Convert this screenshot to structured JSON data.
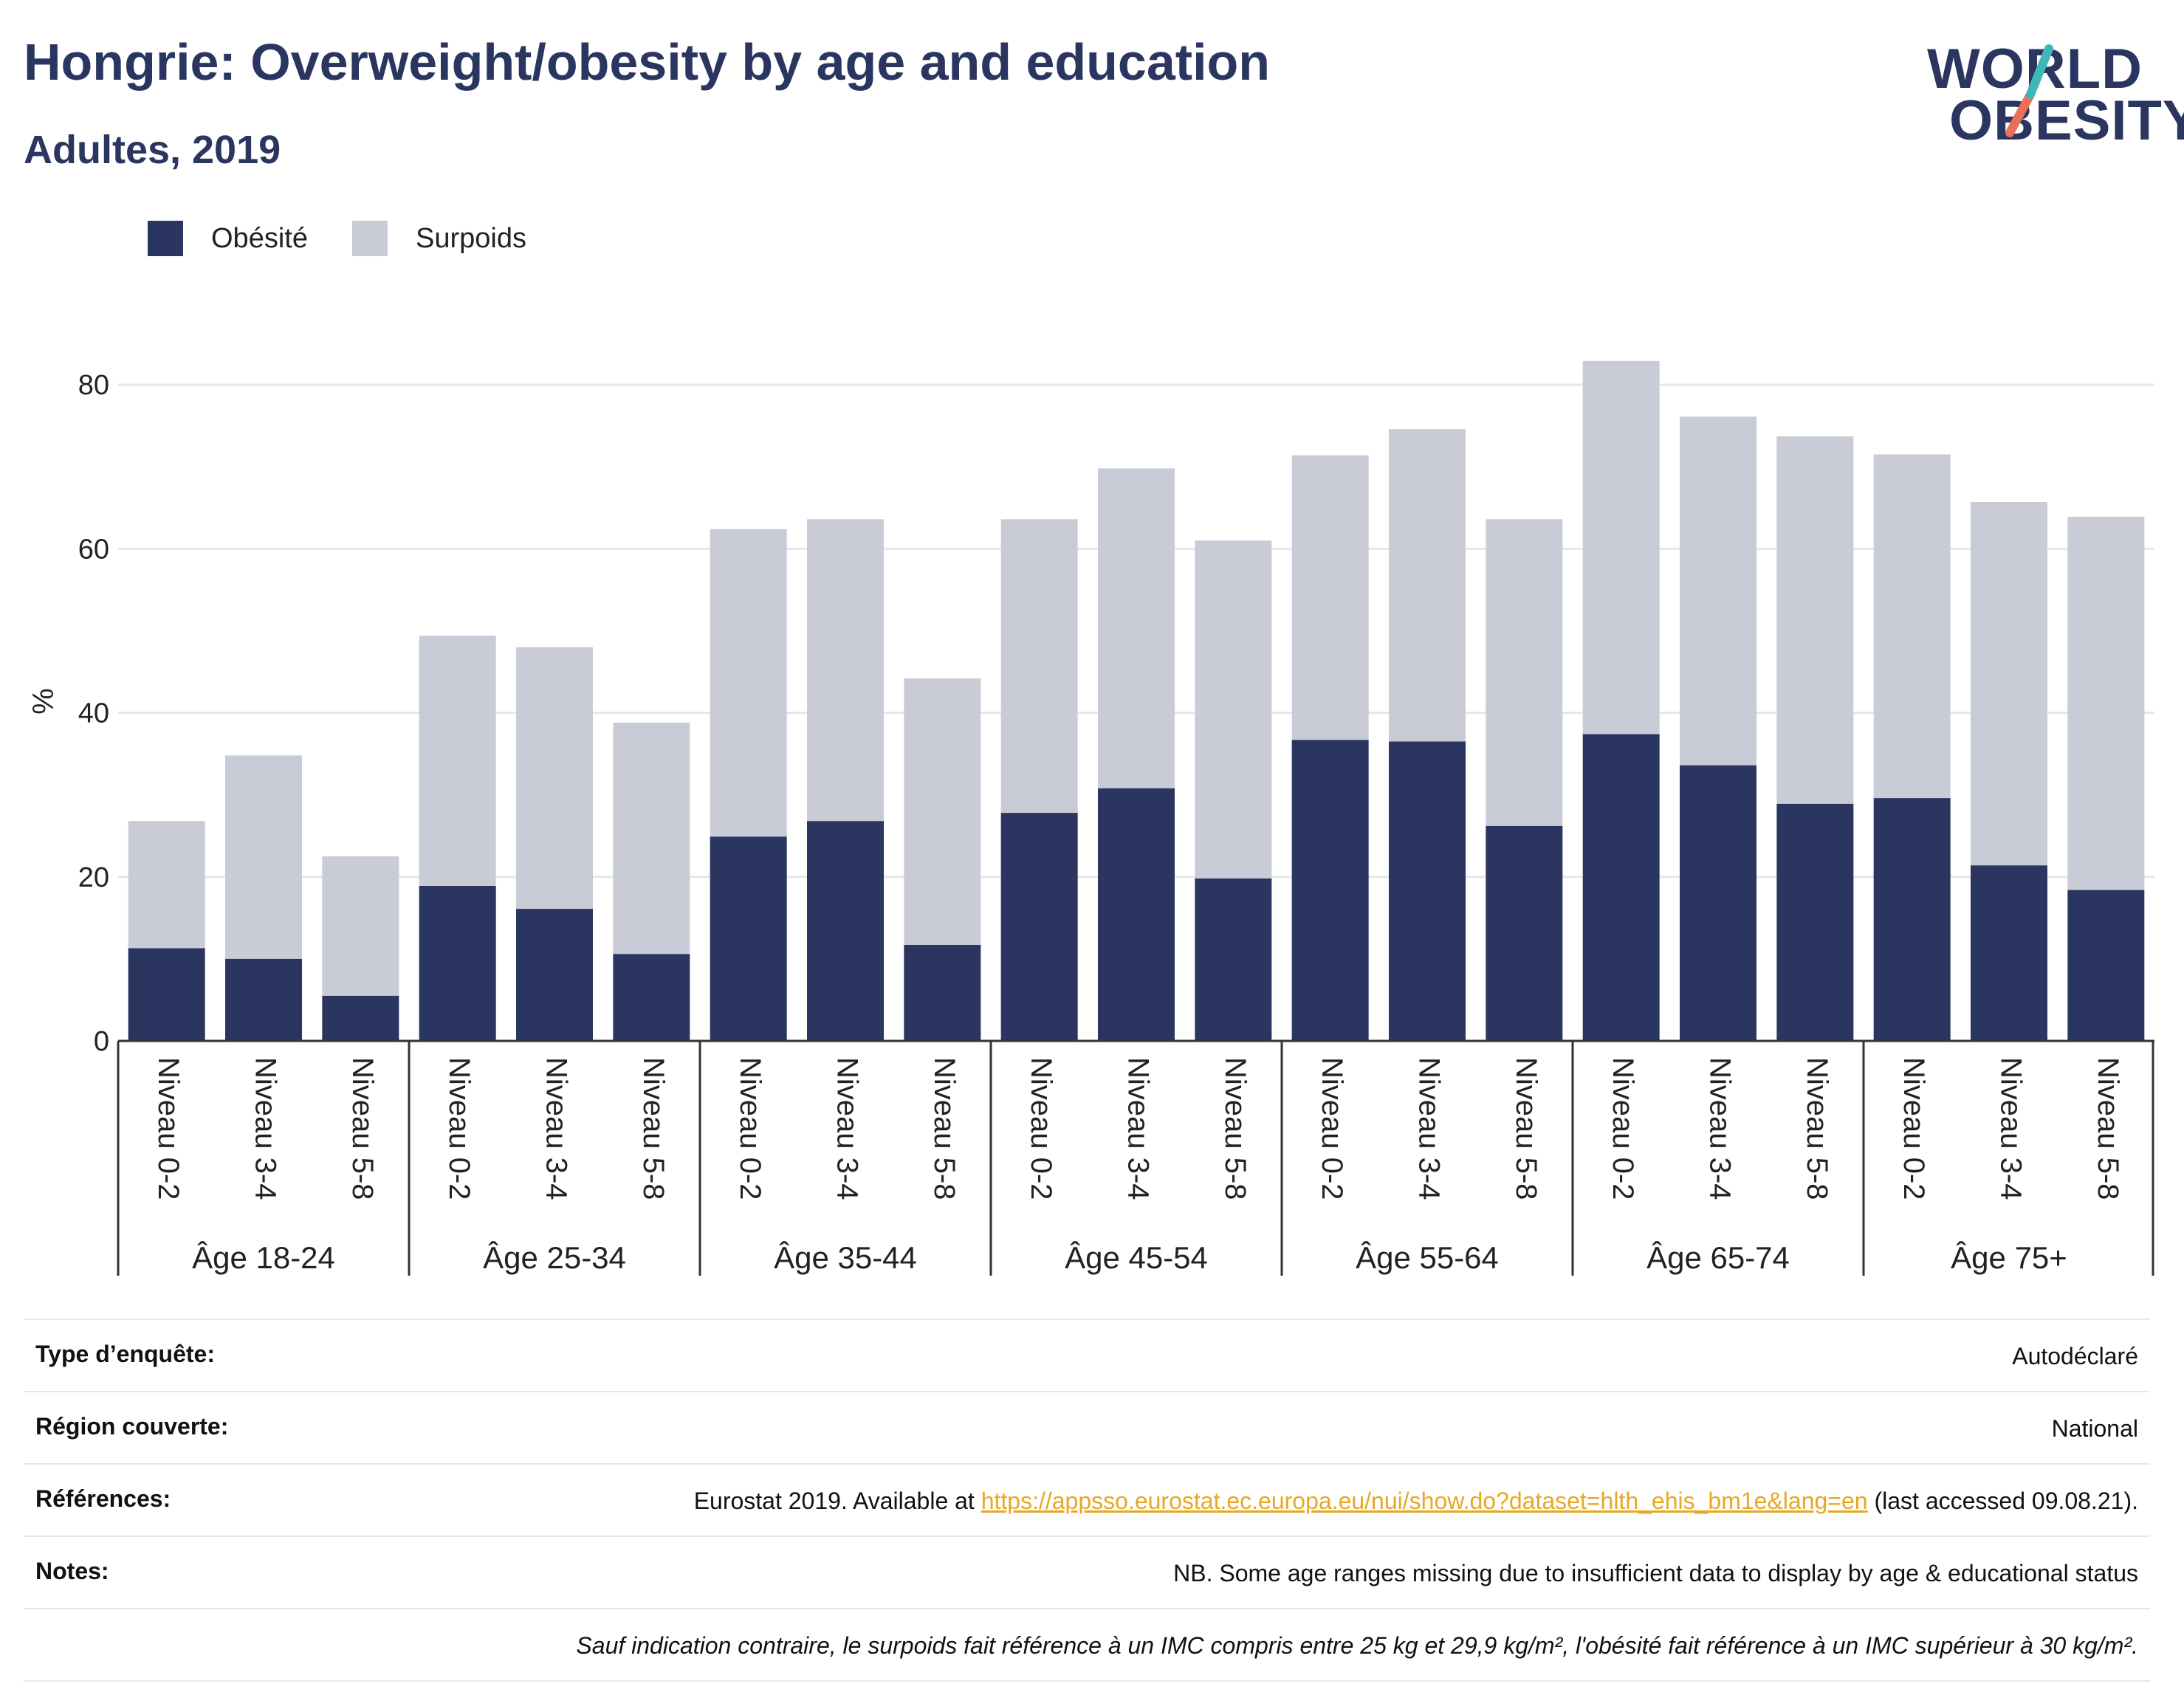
{
  "title": "Hongrie: Overweight/obesity by age and education",
  "subtitle": "Adultes, 2019",
  "logo": {
    "line1": "WORLD",
    "line2": "OBESITY",
    "colors": {
      "navy": "#2b3660",
      "teal": "#3fb7b7",
      "coral": "#e8705a"
    }
  },
  "colors": {
    "obesite": "#2b3660",
    "surpoids": "#c9cbd7",
    "grid": "#e6e7ec",
    "axis": "#333333"
  },
  "chart_data": {
    "type": "bar",
    "stacked": true,
    "ylabel": "%",
    "ylim": [
      0,
      90
    ],
    "yticks": [
      0,
      20,
      40,
      60,
      80
    ],
    "grid": true,
    "legend": [
      "Obésité",
      "Surpoids"
    ],
    "legend_position": "top-left",
    "groups": [
      {
        "label": "Âge 18-24",
        "categories": [
          "Niveau 0-2",
          "Niveau 3-4",
          "Niveau 5-8"
        ],
        "obesite": [
          11.3,
          10.0,
          5.5
        ],
        "total": [
          26.8,
          34.8,
          22.5
        ]
      },
      {
        "label": "Âge 25-34",
        "categories": [
          "Niveau 0-2",
          "Niveau 3-4",
          "Niveau 5-8"
        ],
        "obesite": [
          18.9,
          16.1,
          10.6
        ],
        "total": [
          49.4,
          48.0,
          38.8
        ]
      },
      {
        "label": "Âge 35-44",
        "categories": [
          "Niveau 0-2",
          "Niveau 3-4",
          "Niveau 5-8"
        ],
        "obesite": [
          24.9,
          26.8,
          11.7
        ],
        "total": [
          62.4,
          63.6,
          44.2
        ]
      },
      {
        "label": "Âge 45-54",
        "categories": [
          "Niveau 0-2",
          "Niveau 3-4",
          "Niveau 5-8"
        ],
        "obesite": [
          27.8,
          30.8,
          19.8
        ],
        "total": [
          63.6,
          69.8,
          61.0
        ]
      },
      {
        "label": "Âge 55-64",
        "categories": [
          "Niveau 0-2",
          "Niveau 3-4",
          "Niveau 5-8"
        ],
        "obesite": [
          36.7,
          36.5,
          26.2
        ],
        "total": [
          71.4,
          74.6,
          63.6
        ]
      },
      {
        "label": "Âge 65-74",
        "categories": [
          "Niveau 0-2",
          "Niveau 3-4",
          "Niveau 5-8"
        ],
        "obesite": [
          37.4,
          33.6,
          28.9
        ],
        "total": [
          82.9,
          76.1,
          73.7
        ]
      },
      {
        "label": "Âge 75+",
        "categories": [
          "Niveau 0-2",
          "Niveau 3-4",
          "Niveau 5-8"
        ],
        "obesite": [
          29.6,
          21.4,
          18.4
        ],
        "total": [
          71.5,
          65.7,
          63.9
        ]
      }
    ]
  },
  "info": {
    "survey_label": "Type d’enquête:",
    "survey_value": "Autodéclaré",
    "region_label": "Région couverte:",
    "region_value": "National",
    "refs_label": "Références:",
    "refs_text_before": "Eurostat 2019. Available at ",
    "refs_link": "https://appsso.eurostat.ec.europa.eu/nui/show.do?dataset=hlth_ehis_bm1e&lang=en",
    "refs_text_after": " (last accessed 09.08.21).",
    "notes_label": "Notes:",
    "notes_value": "NB. Some age ranges missing due to insufficient data to display by age & educational status",
    "definition": "Sauf indication contraire, le surpoids fait référence à un IMC compris entre 25 kg et 29,9 kg/m², l'obésité fait référence à un IMC supérieur à 30 kg/m²."
  }
}
